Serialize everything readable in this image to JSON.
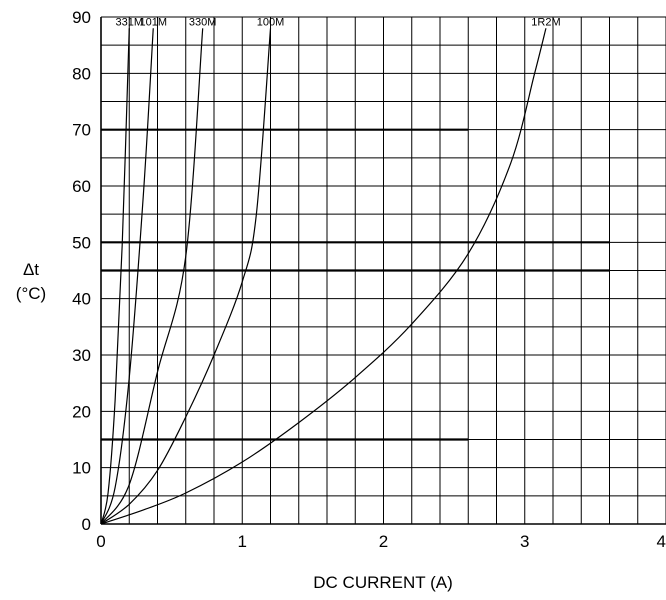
{
  "chart_data": {
    "type": "line",
    "xlabel": "DC CURRENT (A)",
    "ylabel_line1": "Δt",
    "ylabel_line2": "(°C)",
    "xlim": [
      0,
      4
    ],
    "ylim": [
      0,
      90
    ],
    "x_ticks": [
      "0",
      "1",
      "2",
      "3",
      "4"
    ],
    "y_ticks": [
      "0",
      "10",
      "20",
      "30",
      "40",
      "50",
      "60",
      "70",
      "80",
      "90"
    ],
    "grid": true,
    "series": [
      {
        "name": "331M",
        "points": [
          [
            0,
            0
          ],
          [
            0.05,
            5.5
          ],
          [
            0.1,
            22
          ],
          [
            0.15,
            49.5
          ],
          [
            0.2,
            88
          ]
        ]
      },
      {
        "name": "101M",
        "points": [
          [
            0,
            0
          ],
          [
            0.1,
            6.5
          ],
          [
            0.2,
            26
          ],
          [
            0.3,
            58.5
          ],
          [
            0.37,
            88
          ]
        ]
      },
      {
        "name": "330M",
        "points": [
          [
            0,
            0
          ],
          [
            0.2,
            7
          ],
          [
            0.4,
            27
          ],
          [
            0.6,
            47.5
          ],
          [
            0.72,
            88
          ]
        ]
      },
      {
        "name": "100M",
        "points": [
          [
            0,
            0
          ],
          [
            0.2,
            3.5
          ],
          [
            0.4,
            9.5
          ],
          [
            0.6,
            19
          ],
          [
            0.8,
            30
          ],
          [
            1.0,
            43
          ],
          [
            1.1,
            55
          ],
          [
            1.2,
            88
          ]
        ]
      },
      {
        "name": "1R2M",
        "points": [
          [
            0,
            0
          ],
          [
            0.3,
            2.5
          ],
          [
            0.6,
            5.5
          ],
          [
            1.0,
            11
          ],
          [
            1.4,
            18
          ],
          [
            1.8,
            26
          ],
          [
            2.2,
            35.5
          ],
          [
            2.6,
            48
          ],
          [
            2.9,
            64
          ],
          [
            3.07,
            80
          ],
          [
            3.15,
            88
          ]
        ]
      }
    ],
    "reference_lines": [
      {
        "y": 70,
        "x_end": 2.6
      },
      {
        "y": 50,
        "x_end": 3.6
      },
      {
        "y": 45,
        "x_end": 3.6
      },
      {
        "y": 15,
        "x_end": 2.6
      }
    ]
  }
}
